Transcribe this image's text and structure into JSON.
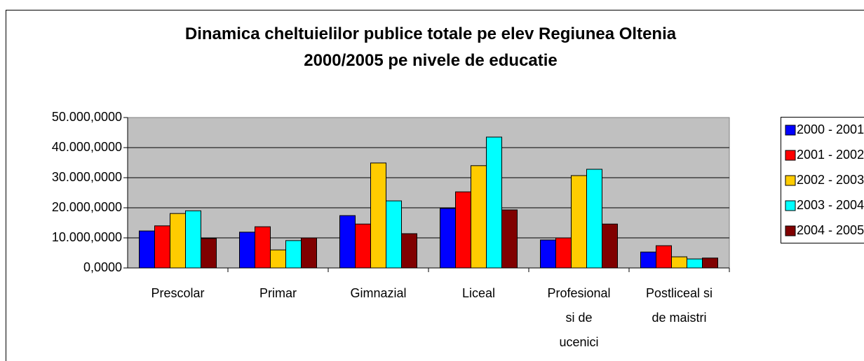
{
  "chart_data": {
    "type": "bar",
    "title": "Dinamica cheltuielilor publice totale pe elev Regiunea Oltenia\n2000/2005 pe nivele de educatie",
    "categories": [
      "Prescolar",
      "Primar",
      "Gimnazial",
      "Liceal",
      "Profesional\nsi de\nucenici",
      "Postliceal si\nde maistri"
    ],
    "series": [
      {
        "name": "2000 - 2001",
        "color": "#0000ff",
        "values": [
          12300,
          11900,
          17400,
          19800,
          9300,
          5300
        ]
      },
      {
        "name": "2001 - 2002",
        "color": "#ff0000",
        "values": [
          14000,
          13700,
          14600,
          25300,
          10000,
          7400
        ]
      },
      {
        "name": "2002 - 2003",
        "color": "#ffcc00",
        "values": [
          18100,
          6000,
          34900,
          34000,
          30700,
          3700
        ]
      },
      {
        "name": "2003 - 2004",
        "color": "#00ffff",
        "values": [
          19000,
          9100,
          22300,
          43500,
          32800,
          3000
        ]
      },
      {
        "name": "2004 - 2005",
        "color": "#800000",
        "values": [
          9800,
          10000,
          11400,
          19300,
          14600,
          3300
        ]
      }
    ],
    "ylim": [
      0,
      50000
    ],
    "yticks": [
      {
        "value": 0,
        "label": "0,0000"
      },
      {
        "value": 10000,
        "label": "10.000,0000"
      },
      {
        "value": 20000,
        "label": "20.000,0000"
      },
      {
        "value": 30000,
        "label": "30.000,0000"
      },
      {
        "value": 40000,
        "label": "40.000,0000"
      },
      {
        "value": 50000,
        "label": "50.000,0000"
      }
    ],
    "grid": true,
    "legend": "right"
  }
}
